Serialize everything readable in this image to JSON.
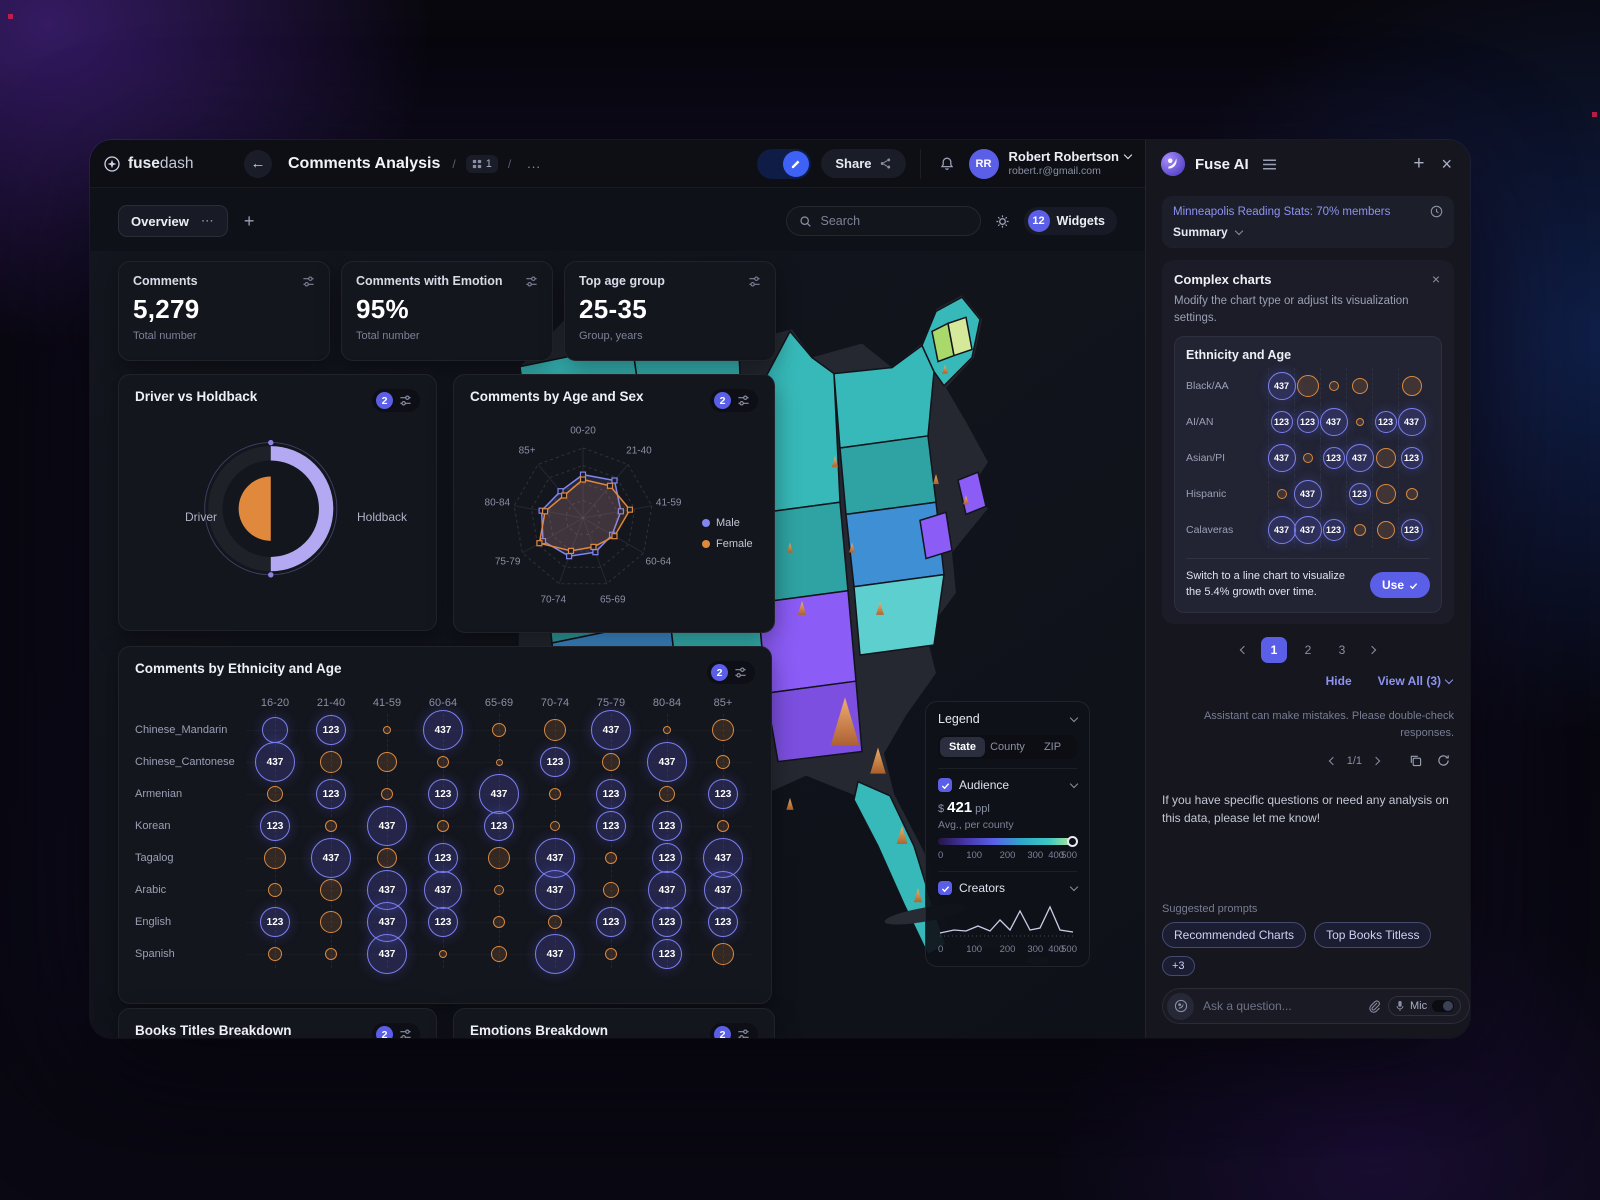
{
  "header": {
    "brand_bold": "fuse",
    "brand_light": "dash",
    "title": "Comments Analysis",
    "breadcrumb_badge": "1",
    "breadcrumb_more": "...",
    "share_label": "Share",
    "user": {
      "initials": "RR",
      "name": "Robert Robertson",
      "email": "robert.r@gmail.com"
    }
  },
  "toolbar": {
    "tab": "Overview",
    "tab_more": "⋯",
    "search_placeholder": "Search",
    "widgets_count": "12",
    "widgets_label": "Widgets"
  },
  "stats": [
    {
      "title": "Comments",
      "value": "5,279",
      "subtitle": "Total number"
    },
    {
      "title": "Comments with Emotion",
      "value": "95%",
      "subtitle": "Total number"
    },
    {
      "title": "Top age group",
      "value": "25-35",
      "subtitle": "Group, years"
    }
  ],
  "driver_widget": {
    "title": "Driver vs Holdback",
    "badge": "2",
    "left_label": "Driver",
    "right_label": "Holdback",
    "colors": {
      "driver": "#e0883c",
      "holdback": "#b3a9f2"
    }
  },
  "radar_widget": {
    "title": "Comments by Age and Sex",
    "badge": "2",
    "axes": [
      "00-20",
      "21-40",
      "41-59",
      "60-64",
      "65-69",
      "70-74",
      "75-79",
      "80-84",
      "85+"
    ],
    "series": [
      {
        "name": "Male",
        "color": "#8287f0",
        "values": [
          0.62,
          0.7,
          0.55,
          0.48,
          0.52,
          0.58,
          0.66,
          0.6,
          0.5
        ]
      },
      {
        "name": "Female",
        "color": "#e0883c",
        "values": [
          0.55,
          0.6,
          0.68,
          0.52,
          0.44,
          0.5,
          0.72,
          0.55,
          0.42
        ]
      }
    ]
  },
  "ethnicity_widget": {
    "title": "Comments by Ethnicity and Age",
    "badge": "2",
    "columns": [
      "16-20",
      "21-40",
      "41-59",
      "60-64",
      "65-69",
      "70-74",
      "75-79",
      "80-84",
      "85+"
    ],
    "rows": [
      "Chinese_Mandarin",
      "Chinese_Cantonese",
      "Armenian",
      "Korean",
      "Tagalog",
      "Arabic",
      "English",
      "Spanish"
    ],
    "cells": [
      [
        {
          "d": 26,
          "c": "p"
        },
        {
          "v": "123",
          "d": 30,
          "c": "p"
        },
        {
          "d": 8,
          "c": "o"
        },
        {
          "v": "437",
          "d": 40,
          "c": "p"
        },
        {
          "d": 14,
          "c": "o"
        },
        {
          "d": 22,
          "c": "o"
        },
        {
          "v": "437",
          "d": 40,
          "c": "p"
        },
        {
          "d": 8,
          "c": "o"
        },
        {
          "d": 22,
          "c": "o"
        }
      ],
      [
        {
          "v": "437",
          "d": 40,
          "c": "p"
        },
        {
          "d": 22,
          "c": "o"
        },
        {
          "d": 20,
          "c": "o"
        },
        {
          "d": 12,
          "c": "o"
        },
        {
          "d": 7,
          "c": "o"
        },
        {
          "v": "123",
          "d": 30,
          "c": "p"
        },
        {
          "d": 18,
          "c": "o"
        },
        {
          "v": "437",
          "d": 40,
          "c": "p"
        },
        {
          "d": 14,
          "c": "o"
        }
      ],
      [
        {
          "d": 16,
          "c": "o"
        },
        {
          "v": "123",
          "d": 30,
          "c": "p"
        },
        {
          "d": 12,
          "c": "o"
        },
        {
          "v": "123",
          "d": 30,
          "c": "p"
        },
        {
          "v": "437",
          "d": 40,
          "c": "p"
        },
        {
          "d": 12,
          "c": "o"
        },
        {
          "v": "123",
          "d": 30,
          "c": "p"
        },
        {
          "d": 16,
          "c": "o"
        },
        {
          "v": "123",
          "d": 30,
          "c": "p"
        }
      ],
      [
        {
          "v": "123",
          "d": 30,
          "c": "p"
        },
        {
          "d": 12,
          "c": "o"
        },
        {
          "v": "437",
          "d": 40,
          "c": "p"
        },
        {
          "d": 12,
          "c": "o"
        },
        {
          "v": "123",
          "d": 30,
          "c": "p"
        },
        {
          "d": 10,
          "c": "o"
        },
        {
          "v": "123",
          "d": 30,
          "c": "p"
        },
        {
          "v": "123",
          "d": 30,
          "c": "p"
        },
        {
          "d": 12,
          "c": "o"
        }
      ],
      [
        {
          "d": 22,
          "c": "o"
        },
        {
          "v": "437",
          "d": 40,
          "c": "p"
        },
        {
          "d": 20,
          "c": "o"
        },
        {
          "v": "123",
          "d": 30,
          "c": "p"
        },
        {
          "d": 22,
          "c": "o"
        },
        {
          "v": "437",
          "d": 40,
          "c": "p"
        },
        {
          "d": 12,
          "c": "o"
        },
        {
          "v": "123",
          "d": 30,
          "c": "p"
        },
        {
          "v": "437",
          "d": 40,
          "c": "p"
        }
      ],
      [
        {
          "d": 14,
          "c": "o"
        },
        {
          "d": 22,
          "c": "o"
        },
        {
          "v": "437",
          "d": 40,
          "c": "p"
        },
        {
          "v": "437",
          "d": 38,
          "c": "p"
        },
        {
          "d": 10,
          "c": "o"
        },
        {
          "v": "437",
          "d": 40,
          "c": "p"
        },
        {
          "d": 16,
          "c": "o"
        },
        {
          "v": "437",
          "d": 38,
          "c": "p"
        },
        {
          "v": "437",
          "d": 38,
          "c": "p"
        }
      ],
      [
        {
          "v": "123",
          "d": 30,
          "c": "p"
        },
        {
          "d": 22,
          "c": "o"
        },
        {
          "v": "437",
          "d": 40,
          "c": "p"
        },
        {
          "v": "123",
          "d": 30,
          "c": "p"
        },
        {
          "d": 12,
          "c": "o"
        },
        {
          "d": 14,
          "c": "o"
        },
        {
          "v": "123",
          "d": 30,
          "c": "p"
        },
        {
          "v": "123",
          "d": 30,
          "c": "p"
        },
        {
          "v": "123",
          "d": 30,
          "c": "p"
        }
      ],
      [
        {
          "d": 14,
          "c": "o"
        },
        {
          "d": 12,
          "c": "o"
        },
        {
          "v": "437",
          "d": 40,
          "c": "p"
        },
        {
          "d": 8,
          "c": "o"
        },
        {
          "d": 16,
          "c": "o"
        },
        {
          "v": "437",
          "d": 40,
          "c": "p"
        },
        {
          "d": 12,
          "c": "o"
        },
        {
          "v": "123",
          "d": 30,
          "c": "p"
        },
        {
          "d": 22,
          "c": "o"
        }
      ]
    ]
  },
  "map_legend": {
    "title": "Legend",
    "tabs": [
      "State",
      "County",
      "ZIP"
    ],
    "active_tab": "State",
    "audience": {
      "label": "Audience",
      "checked": true,
      "currency": "$",
      "value": "421",
      "unit": "ppl",
      "caption": "Avg., per county",
      "ticks": [
        "0",
        "100",
        "200",
        "300",
        "400",
        "500"
      ]
    },
    "creators": {
      "label": "Creators",
      "checked": true,
      "ticks": [
        "0",
        "100",
        "200",
        "300",
        "400",
        "500"
      ]
    }
  },
  "bottom_widgets": [
    {
      "title": "Books Titles Breakdown",
      "badge": "2"
    },
    {
      "title": "Emotions Breakdown",
      "badge": "2"
    }
  ],
  "ai_panel": {
    "brand": "Fuse AI",
    "notification": {
      "title": "Minneapolis Reading Stats: 70% members",
      "summary_label": "Summary"
    },
    "card": {
      "title": "Complex charts",
      "body": "Modify the chart type or adjust its visualization settings.",
      "chart": {
        "title": "Ethnicity and Age",
        "rows": [
          {
            "label": "Black/AA",
            "bubbles": [
              {
                "v": "437",
                "d": 28,
                "c": "p"
              },
              {
                "d": 22,
                "c": "o"
              },
              {
                "d": 10,
                "c": "o"
              },
              {
                "d": 16,
                "c": "o"
              },
              {
                "d": 0
              },
              {
                "d": 20,
                "c": "o"
              }
            ]
          },
          {
            "label": "AI/AN",
            "bubbles": [
              {
                "v": "123",
                "d": 22,
                "c": "p"
              },
              {
                "v": "123",
                "d": 22,
                "c": "p"
              },
              {
                "v": "437",
                "d": 28,
                "c": "p"
              },
              {
                "d": 8,
                "c": "o"
              },
              {
                "v": "123",
                "d": 22,
                "c": "p"
              },
              {
                "v": "437",
                "d": 28,
                "c": "p"
              }
            ]
          },
          {
            "label": "Asian/PI",
            "bubbles": [
              {
                "v": "437",
                "d": 28,
                "c": "p"
              },
              {
                "d": 10,
                "c": "o"
              },
              {
                "v": "123",
                "d": 22,
                "c": "p"
              },
              {
                "v": "437",
                "d": 28,
                "c": "p"
              },
              {
                "d": 20,
                "c": "o"
              },
              {
                "v": "123",
                "d": 22,
                "c": "p"
              }
            ]
          },
          {
            "label": "Hispanic",
            "bubbles": [
              {
                "d": 10,
                "c": "o"
              },
              {
                "v": "437",
                "d": 28,
                "c": "p"
              },
              {
                "d": 0
              },
              {
                "v": "123",
                "d": 22,
                "c": "p"
              },
              {
                "d": 20,
                "c": "o"
              },
              {
                "d": 12,
                "c": "o"
              }
            ]
          },
          {
            "label": "Calaveras",
            "bubbles": [
              {
                "v": "437",
                "d": 28,
                "c": "p"
              },
              {
                "v": "437",
                "d": 28,
                "c": "p"
              },
              {
                "v": "123",
                "d": 22,
                "c": "p"
              },
              {
                "d": 12,
                "c": "o"
              },
              {
                "d": 18,
                "c": "o"
              },
              {
                "v": "123",
                "d": 22,
                "c": "p"
              }
            ]
          }
        ]
      },
      "suggestion": "Switch to a line chart to visualize the 5.4% growth over time.",
      "use_label": "Use",
      "pages": [
        "1",
        "2",
        "3"
      ],
      "active_page": "1",
      "hide_label": "Hide",
      "view_all_label": "View All (3)"
    },
    "disclaimer": "Assistant can make mistakes. Please double-check responses.",
    "pager": "1/1",
    "message": "If you have specific questions or need any analysis on this data, please let me know!",
    "suggested_label": "Suggested prompts",
    "prompts": [
      "Recommended Charts",
      "Top Books Titless"
    ],
    "more_chip": "+3",
    "input_placeholder": "Ask a question...",
    "mic_label": "Mic",
    "accent": "#5b5fe8"
  }
}
